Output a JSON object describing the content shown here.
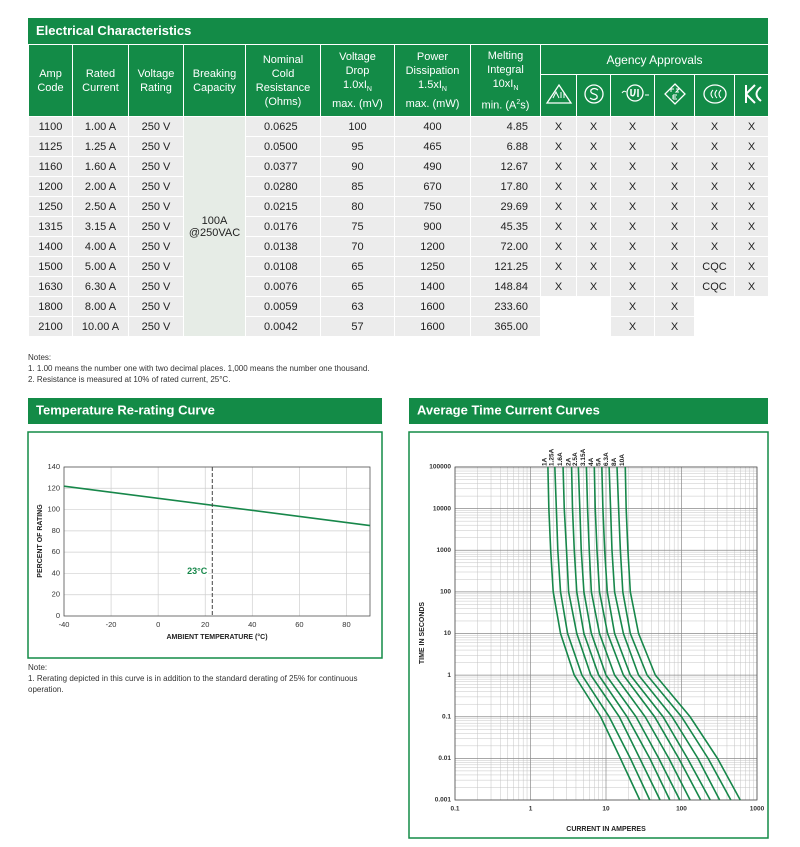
{
  "table_title": "Electrical Characteristics",
  "table": {
    "headers": [
      [
        "Amp",
        "Code"
      ],
      [
        "Rated",
        "Current"
      ],
      [
        "Voltage",
        "Rating"
      ],
      [
        "Breaking",
        "Capacity"
      ],
      [
        "Nominal",
        "Cold",
        "Resistance",
        "(Ohms)"
      ],
      [
        "Voltage",
        "Drop",
        {
          "text": "1.0xI",
          "sub": "N"
        },
        "max.  (mV)"
      ],
      [
        "Power",
        "Dissipation",
        {
          "text": "1.5xI",
          "sub": "N"
        },
        "max. (mW)"
      ],
      [
        "Melting",
        "Integral",
        {
          "text": "10xI",
          "sub": "N"
        },
        {
          "text": "min. (A",
          "sup": "2",
          "after": "s)"
        }
      ]
    ],
    "agency_header": "Agency Approvals",
    "breaking_capacity": [
      "100A",
      "@250VAC"
    ],
    "rows": [
      [
        "1100",
        "1.00 A",
        "250 V",
        "0.0625",
        "100",
        "400",
        "4.85",
        "X",
        "X",
        "X",
        "X",
        "X",
        "X"
      ],
      [
        "1125",
        "1.25 A",
        "250 V",
        "0.0500",
        "95",
        "465",
        "6.88",
        "X",
        "X",
        "X",
        "X",
        "X",
        "X"
      ],
      [
        "1160",
        "1.60 A",
        "250 V",
        "0.0377",
        "90",
        "490",
        "12.67",
        "X",
        "X",
        "X",
        "X",
        "X",
        "X"
      ],
      [
        "1200",
        "2.00 A",
        "250 V",
        "0.0280",
        "85",
        "670",
        "17.80",
        "X",
        "X",
        "X",
        "X",
        "X",
        "X"
      ],
      [
        "1250",
        "2.50 A",
        "250 V",
        "0.0215",
        "80",
        "750",
        "29.69",
        "X",
        "X",
        "X",
        "X",
        "X",
        "X"
      ],
      [
        "1315",
        "3.15 A",
        "250 V",
        "0.0176",
        "75",
        "900",
        "45.35",
        "X",
        "X",
        "X",
        "X",
        "X",
        "X"
      ],
      [
        "1400",
        "4.00 A",
        "250 V",
        "0.0138",
        "70",
        "1200",
        "72.00",
        "X",
        "X",
        "X",
        "X",
        "X",
        "X"
      ],
      [
        "1500",
        "5.00 A",
        "250 V",
        "0.0108",
        "65",
        "1250",
        "121.25",
        "X",
        "X",
        "X",
        "X",
        "CQC",
        "X"
      ],
      [
        "1630",
        "6.30 A",
        "250 V",
        "0.0076",
        "65",
        "1400",
        "148.84",
        "X",
        "X",
        "X",
        "X",
        "CQC",
        "X"
      ],
      [
        "1800",
        "8.00 A",
        "250 V",
        "0.0059",
        "63",
        "1600",
        "233.60",
        null,
        null,
        "X",
        "X",
        null,
        null
      ],
      [
        "2100",
        "10.00 A",
        "250 V",
        "0.0042",
        "57",
        "1600",
        "365.00",
        null,
        null,
        "X",
        "X",
        null,
        null
      ]
    ]
  },
  "notes": {
    "title": "Notes:",
    "items": [
      "1. 1.00 means the number one with two decimal places. 1,000 means the number one thousand.",
      "2. Resistance is measured at 10% of rated current, 25°C."
    ]
  },
  "chart_notes": {
    "title": "Note:",
    "items": [
      "1. Rerating depicted in this curve is in addition to the standard derating of 25% for continuous operation."
    ]
  },
  "chart_data": [
    {
      "type": "line",
      "title": "Temperature Re-rating Curve",
      "x_label": "AMBIENT TEMPERATURE (°C)",
      "y_label": "PERCENT OF RATING",
      "x": [
        -40,
        90
      ],
      "values": [
        122,
        85
      ],
      "color": "#17874a",
      "xlim": [
        -40,
        90
      ],
      "xticks": [
        -40,
        -20,
        0,
        20,
        40,
        60,
        80
      ],
      "ylim": [
        0,
        140
      ],
      "yticks": [
        0,
        20,
        40,
        60,
        80,
        100,
        120,
        140
      ],
      "grid": true,
      "annotations": [
        {
          "x": 23,
          "label": "23°C"
        }
      ]
    },
    {
      "type": "line",
      "title": "Average Time Current Curves",
      "x_label": "CURRENT IN AMPERES",
      "y_label": "TIME IN SECONDS",
      "log_x": true,
      "log_y": true,
      "grid": true,
      "minor_grid": true,
      "xlim": [
        0.1,
        1000
      ],
      "xticks": [
        0.1,
        1,
        10,
        100,
        1000
      ],
      "ylim": [
        0.001,
        100000
      ],
      "yticks": [
        0.001,
        0.01,
        0.1,
        1,
        10,
        100,
        1000,
        10000,
        100000
      ],
      "series": [
        {
          "name": "1A",
          "color": "#17874a",
          "x": [
            1.7,
            1.75,
            1.85,
            2.0,
            2.5,
            3.8,
            8.5,
            15.5,
            28
          ],
          "values": [
            100000,
            10000,
            1000,
            100,
            10,
            1,
            0.1,
            0.01,
            0.001
          ]
        },
        {
          "name": "1.25A",
          "color": "#17874a",
          "x": [
            2.1,
            2.2,
            2.3,
            2.5,
            3.1,
            4.8,
            11,
            21,
            38
          ],
          "values": [
            100000,
            10000,
            1000,
            100,
            10,
            1,
            0.1,
            0.01,
            0.001
          ]
        },
        {
          "name": "1.6A",
          "color": "#17874a",
          "x": [
            2.7,
            2.8,
            3.0,
            3.2,
            4.1,
            6.3,
            15,
            28,
            52
          ],
          "values": [
            100000,
            10000,
            1000,
            100,
            10,
            1,
            0.1,
            0.01,
            0.001
          ]
        },
        {
          "name": "2A",
          "color": "#17874a",
          "x": [
            3.5,
            3.6,
            3.8,
            4.1,
            5.1,
            8.0,
            19,
            38,
            70
          ],
          "values": [
            100000,
            10000,
            1000,
            100,
            10,
            1,
            0.1,
            0.01,
            0.001
          ]
        },
        {
          "name": "2.5A",
          "color": "#17874a",
          "x": [
            4.3,
            4.5,
            4.7,
            5.1,
            6.4,
            10,
            25,
            50,
            95
          ],
          "values": [
            100000,
            10000,
            1000,
            100,
            10,
            1,
            0.1,
            0.01,
            0.001
          ]
        },
        {
          "name": "3.15A",
          "color": "#17874a",
          "x": [
            5.5,
            5.7,
            6.0,
            6.4,
            8.2,
            13,
            33,
            68,
            130
          ],
          "values": [
            100000,
            10000,
            1000,
            100,
            10,
            1,
            0.1,
            0.01,
            0.001
          ]
        },
        {
          "name": "4A",
          "color": "#17874a",
          "x": [
            7.0,
            7.2,
            7.6,
            8.2,
            10.5,
            17,
            44,
            92,
            180
          ],
          "values": [
            100000,
            10000,
            1000,
            100,
            10,
            1,
            0.1,
            0.01,
            0.001
          ]
        },
        {
          "name": "5A",
          "color": "#17874a",
          "x": [
            8.8,
            9.1,
            9.6,
            10.4,
            13,
            21,
            57,
            120,
            240
          ],
          "values": [
            100000,
            10000,
            1000,
            100,
            10,
            1,
            0.1,
            0.01,
            0.001
          ]
        },
        {
          "name": "6.3A",
          "color": "#17874a",
          "x": [
            11,
            11.5,
            12,
            13,
            17,
            27,
            75,
            165,
            320
          ],
          "values": [
            100000,
            10000,
            1000,
            100,
            10,
            1,
            0.1,
            0.01,
            0.001
          ]
        },
        {
          "name": "8A",
          "color": "#17874a",
          "x": [
            14,
            14.7,
            15.5,
            16.7,
            21,
            35,
            100,
            225,
            450
          ],
          "values": [
            100000,
            10000,
            1000,
            100,
            10,
            1,
            0.1,
            0.01,
            0.001
          ]
        },
        {
          "name": "10A",
          "color": "#17874a",
          "x": [
            18,
            18.5,
            19.5,
            21,
            27,
            45,
            130,
            300,
            600
          ],
          "values": [
            100000,
            10000,
            1000,
            100,
            10,
            1,
            0.1,
            0.01,
            0.001
          ]
        }
      ]
    }
  ]
}
